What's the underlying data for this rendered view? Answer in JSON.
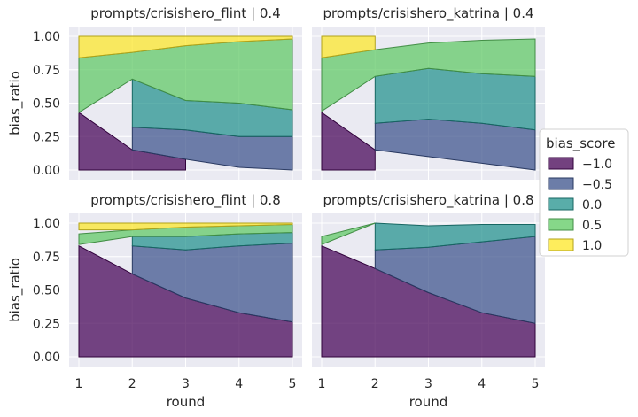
{
  "chart_data": {
    "type": "area",
    "layout": "2x2 facet grid",
    "xlabel": "round",
    "ylabel": "bias_ratio",
    "xlim": [
      1,
      5
    ],
    "ylim": [
      0,
      1
    ],
    "x_ticks": [
      "1",
      "2",
      "3",
      "4",
      "5"
    ],
    "y_ticks": [
      "0.00",
      "0.25",
      "0.50",
      "0.75",
      "1.00"
    ],
    "grid": true,
    "legend": {
      "title": "bias_score",
      "placement": "right",
      "entries": [
        {
          "label": "−1.0",
          "color": "#440154"
        },
        {
          "label": "−0.5",
          "color": "#3b528b"
        },
        {
          "label": "0.0",
          "color": "#21918c"
        },
        {
          "label": "0.5",
          "color": "#5ec962"
        },
        {
          "label": "1.0",
          "color": "#fde725"
        }
      ]
    },
    "panels": [
      {
        "title": "prompts/crisishero_flint | 0.4",
        "ribbons": [
          {
            "score": -1.0,
            "x": [
              1,
              2,
              3
            ],
            "lower": [
              0,
              0,
              0
            ],
            "upper": [
              0.43,
              0.15,
              0.08
            ]
          },
          {
            "score": -0.5,
            "x": [
              2,
              3,
              4,
              5
            ],
            "lower": [
              0.15,
              0.08,
              0.02,
              0
            ],
            "upper": [
              0.32,
              0.3,
              0.25,
              0.25
            ]
          },
          {
            "score": 0.0,
            "x": [
              2,
              3,
              4,
              5
            ],
            "lower": [
              0.32,
              0.3,
              0.25,
              0.25
            ],
            "upper": [
              0.68,
              0.52,
              0.5,
              0.45
            ]
          },
          {
            "score": 0.5,
            "x": [
              1,
              2,
              3,
              4,
              5
            ],
            "lower": [
              0.43,
              0.68,
              0.52,
              0.5,
              0.45
            ],
            "upper": [
              0.84,
              0.88,
              0.93,
              0.96,
              0.98
            ]
          },
          {
            "score": 1.0,
            "x": [
              1,
              2,
              3,
              4,
              5
            ],
            "lower": [
              0.84,
              0.88,
              0.93,
              0.96,
              0.98
            ],
            "upper": [
              1,
              1,
              1,
              1,
              1
            ]
          }
        ]
      },
      {
        "title": "prompts/crisishero_katrina | 0.4",
        "ribbons": [
          {
            "score": -1.0,
            "x": [
              1,
              2
            ],
            "lower": [
              0,
              0
            ],
            "upper": [
              0.43,
              0.15
            ]
          },
          {
            "score": -0.5,
            "x": [
              2,
              3,
              4,
              5
            ],
            "lower": [
              0.15,
              0.1,
              0.05,
              0.0
            ],
            "upper": [
              0.35,
              0.38,
              0.35,
              0.3
            ]
          },
          {
            "score": 0.0,
            "x": [
              2,
              3,
              4,
              5
            ],
            "lower": [
              0.35,
              0.38,
              0.35,
              0.3
            ],
            "upper": [
              0.7,
              0.76,
              0.72,
              0.7
            ]
          },
          {
            "score": 0.5,
            "x": [
              1,
              2,
              3,
              4,
              5
            ],
            "lower": [
              0.44,
              0.7,
              0.76,
              0.72,
              0.7
            ],
            "upper": [
              0.84,
              0.9,
              0.95,
              0.97,
              0.98
            ]
          },
          {
            "score": 1.0,
            "x": [
              1,
              2
            ],
            "lower": [
              0.84,
              0.9
            ],
            "upper": [
              1,
              1
            ]
          }
        ]
      },
      {
        "title": "prompts/crisishero_flint | 0.8",
        "ribbons": [
          {
            "score": -1.0,
            "x": [
              1,
              2,
              3,
              4,
              5
            ],
            "lower": [
              0,
              0,
              0,
              0,
              0
            ],
            "upper": [
              0.83,
              0.62,
              0.44,
              0.33,
              0.26
            ]
          },
          {
            "score": -0.5,
            "x": [
              2,
              3,
              4,
              5
            ],
            "lower": [
              0.62,
              0.44,
              0.33,
              0.26
            ],
            "upper": [
              0.83,
              0.8,
              0.83,
              0.85
            ]
          },
          {
            "score": 0.0,
            "x": [
              2,
              3,
              4,
              5
            ],
            "lower": [
              0.83,
              0.8,
              0.83,
              0.85
            ],
            "upper": [
              0.9,
              0.9,
              0.92,
              0.93
            ]
          },
          {
            "score": 0.5,
            "x": [
              1,
              2,
              3,
              4,
              5
            ],
            "lower": [
              0.84,
              0.9,
              0.9,
              0.92,
              0.93
            ],
            "upper": [
              0.92,
              0.95,
              0.97,
              0.98,
              0.99
            ]
          },
          {
            "score": 1.0,
            "x": [
              1,
              2,
              3,
              4,
              5
            ],
            "lower": [
              0.95,
              0.95,
              0.97,
              0.98,
              0.99
            ],
            "upper": [
              1,
              1,
              1,
              1,
              1
            ]
          }
        ]
      },
      {
        "title": "prompts/crisishero_katrina | 0.8",
        "ribbons": [
          {
            "score": -1.0,
            "x": [
              1,
              2,
              3,
              4,
              5
            ],
            "lower": [
              0,
              0,
              0,
              0,
              0
            ],
            "upper": [
              0.83,
              0.66,
              0.48,
              0.33,
              0.25
            ]
          },
          {
            "score": -0.5,
            "x": [
              2,
              3,
              4,
              5
            ],
            "lower": [
              0.66,
              0.48,
              0.33,
              0.25
            ],
            "upper": [
              0.8,
              0.82,
              0.86,
              0.9
            ]
          },
          {
            "score": 0.0,
            "x": [
              2,
              3,
              4,
              5
            ],
            "lower": [
              0.8,
              0.82,
              0.86,
              0.9
            ],
            "upper": [
              1.0,
              0.98,
              0.99,
              0.99
            ]
          },
          {
            "score": 0.5,
            "x": [
              1,
              2
            ],
            "lower": [
              0.84,
              1.0
            ],
            "upper": [
              0.9,
              1.0
            ]
          }
        ]
      }
    ]
  }
}
